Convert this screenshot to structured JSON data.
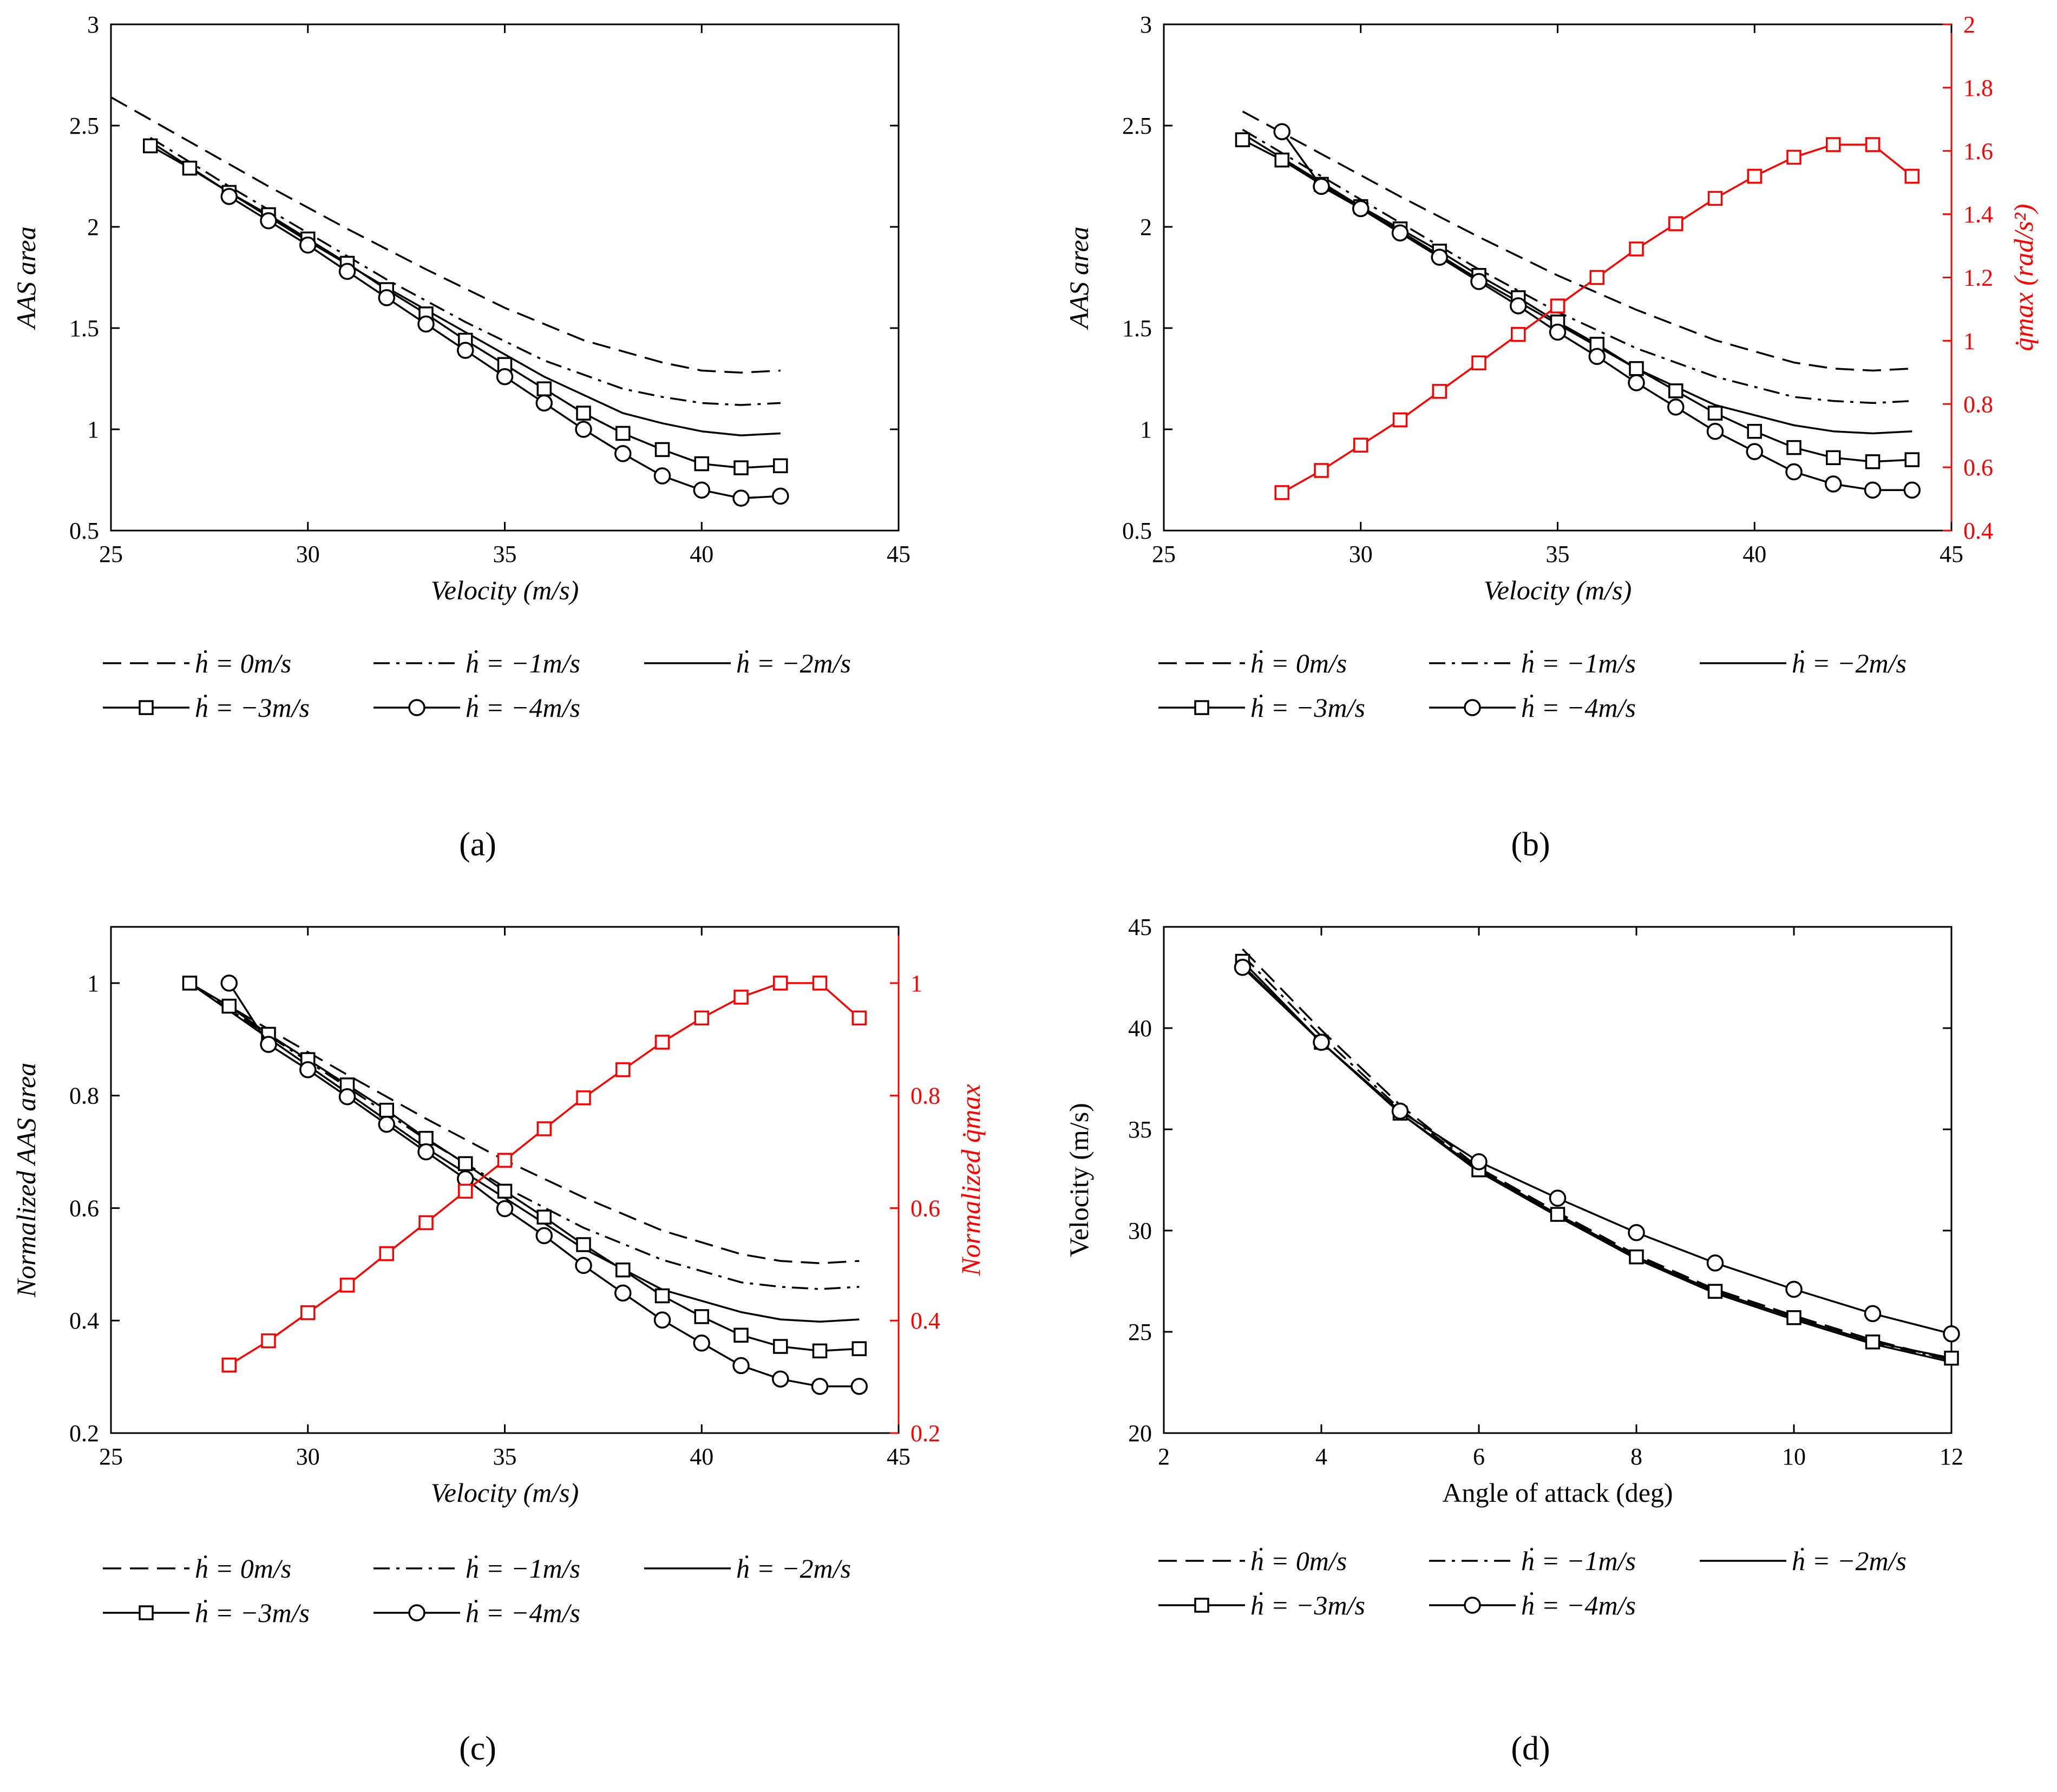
{
  "chart_data": [
    {
      "id": "a",
      "type": "line",
      "caption": "(a)",
      "xlabel": "Velocity (m/s)",
      "ylabel": "AAS area",
      "xlim": [
        25,
        45
      ],
      "ylim": [
        0.5,
        3
      ],
      "xticks": [
        "25",
        "30",
        "35",
        "40",
        "45"
      ],
      "yticks": [
        "0.5",
        "1",
        "1.5",
        "2",
        "2.5",
        "3"
      ],
      "legend": [
        "ḣ = 0m/s",
        "ḣ = −1m/s",
        "ḣ = −2m/s",
        "ḣ = −3m/s",
        "ḣ = −4m/s"
      ],
      "series": [
        {
          "name": "ḣ = 0m/s",
          "style": "dashed",
          "x": [
            25,
            27,
            29,
            31,
            33,
            35,
            37,
            39,
            40,
            41,
            42
          ],
          "y": [
            2.64,
            2.42,
            2.2,
            1.99,
            1.79,
            1.6,
            1.44,
            1.33,
            1.29,
            1.28,
            1.29
          ]
        },
        {
          "name": "ḣ = −1m/s",
          "style": "dashdot",
          "x": [
            26,
            28,
            30,
            32,
            34,
            36,
            38,
            39,
            40,
            41,
            42
          ],
          "y": [
            2.44,
            2.2,
            1.97,
            1.74,
            1.53,
            1.34,
            1.2,
            1.16,
            1.13,
            1.12,
            1.13
          ]
        },
        {
          "name": "ḣ = −2m/s",
          "style": "solid",
          "x": [
            26,
            28,
            30,
            32,
            34,
            36,
            38,
            39,
            40,
            41,
            42
          ],
          "y": [
            2.42,
            2.17,
            1.93,
            1.7,
            1.48,
            1.26,
            1.08,
            1.03,
            0.99,
            0.97,
            0.98
          ]
        },
        {
          "name": "ḣ = −3m/s",
          "style": "square",
          "x": [
            26,
            27,
            28,
            29,
            30,
            31,
            32,
            33,
            34,
            35,
            36,
            37,
            38,
            39,
            40,
            41,
            42
          ],
          "y": [
            2.4,
            2.29,
            2.17,
            2.06,
            1.94,
            1.82,
            1.69,
            1.57,
            1.44,
            1.32,
            1.2,
            1.08,
            0.98,
            0.9,
            0.83,
            0.81,
            0.82
          ]
        },
        {
          "name": "ḣ = −4m/s",
          "style": "circle",
          "x": [
            28,
            29,
            30,
            31,
            32,
            33,
            34,
            35,
            36,
            37,
            38,
            39,
            40,
            41,
            42
          ],
          "y": [
            2.15,
            2.03,
            1.91,
            1.78,
            1.65,
            1.52,
            1.39,
            1.26,
            1.13,
            1.0,
            0.88,
            0.77,
            0.7,
            0.66,
            0.67
          ]
        }
      ]
    },
    {
      "id": "b",
      "type": "line",
      "caption": "(b)",
      "xlabel": "Velocity (m/s)",
      "ylabel": "AAS area",
      "ylabel_right": "q̇max (rad/s²)",
      "xlim": [
        25,
        45
      ],
      "ylim": [
        0.5,
        3
      ],
      "ylim_right": [
        0.4,
        2
      ],
      "xticks": [
        "25",
        "30",
        "35",
        "40",
        "45"
      ],
      "yticks": [
        "0.5",
        "1",
        "1.5",
        "2",
        "2.5",
        "3"
      ],
      "yticks_right": [
        "0.4",
        "0.6",
        "0.8",
        "1",
        "1.2",
        "1.4",
        "1.6",
        "1.8",
        "2"
      ],
      "legend": [
        "ḣ = 0m/s",
        "ḣ = −1m/s",
        "ḣ = −2m/s",
        "ḣ = −3m/s",
        "ḣ = −4m/s"
      ],
      "series": [
        {
          "name": "ḣ = 0m/s",
          "style": "dashed",
          "x": [
            27,
            29,
            31,
            33,
            35,
            37,
            39,
            41,
            42,
            43,
            44
          ],
          "y": [
            2.57,
            2.36,
            2.15,
            1.95,
            1.76,
            1.59,
            1.44,
            1.33,
            1.3,
            1.29,
            1.3
          ]
        },
        {
          "name": "ḣ = −1m/s",
          "style": "dashdot",
          "x": [
            27,
            29,
            31,
            33,
            35,
            37,
            39,
            41,
            42,
            43,
            44
          ],
          "y": [
            2.48,
            2.25,
            2.02,
            1.79,
            1.58,
            1.4,
            1.26,
            1.16,
            1.14,
            1.13,
            1.14
          ]
        },
        {
          "name": "ḣ = −2m/s",
          "style": "solid",
          "x": [
            27,
            29,
            31,
            33,
            35,
            37,
            39,
            41,
            42,
            43,
            44
          ],
          "y": [
            2.46,
            2.22,
            1.98,
            1.74,
            1.52,
            1.3,
            1.12,
            1.02,
            0.99,
            0.98,
            0.99
          ]
        },
        {
          "name": "ḣ = −3m/s",
          "style": "square",
          "x": [
            27,
            28,
            29,
            30,
            31,
            32,
            33,
            34,
            35,
            36,
            37,
            38,
            39,
            40,
            41,
            42,
            43,
            44
          ],
          "y": [
            2.43,
            2.33,
            2.21,
            2.1,
            1.99,
            1.88,
            1.76,
            1.65,
            1.53,
            1.42,
            1.3,
            1.19,
            1.08,
            0.99,
            0.91,
            0.86,
            0.84,
            0.85
          ]
        },
        {
          "name": "ḣ = −4m/s",
          "style": "circle",
          "x": [
            28,
            29,
            30,
            31,
            32,
            33,
            34,
            35,
            36,
            37,
            38,
            39,
            40,
            41,
            42,
            43,
            44
          ],
          "y": [
            2.47,
            2.2,
            2.09,
            1.97,
            1.85,
            1.73,
            1.61,
            1.48,
            1.36,
            1.23,
            1.11,
            0.99,
            0.89,
            0.79,
            0.73,
            0.7,
            0.7
          ]
        },
        {
          "name": "q̇max",
          "style": "red-square",
          "axis": "right",
          "x": [
            28,
            29,
            30,
            31,
            32,
            33,
            34,
            35,
            36,
            37,
            38,
            39,
            40,
            41,
            42,
            43,
            44
          ],
          "y": [
            0.52,
            0.59,
            0.67,
            0.75,
            0.84,
            0.93,
            1.02,
            1.11,
            1.2,
            1.29,
            1.37,
            1.45,
            1.52,
            1.58,
            1.62,
            1.62,
            1.52
          ]
        }
      ]
    },
    {
      "id": "c",
      "type": "line",
      "caption": "(c)",
      "xlabel": "Velocity (m/s)",
      "ylabel": "Normalized AAS area",
      "ylabel_right": "Normalized q̇max",
      "xlim": [
        25,
        45
      ],
      "ylim": [
        0.2,
        1.1
      ],
      "ylim_right": [
        0.2,
        1.1
      ],
      "xticks": [
        "25",
        "30",
        "35",
        "40",
        "45"
      ],
      "yticks": [
        "0.2",
        "0.4",
        "0.6",
        "0.8",
        "1"
      ],
      "yticks_right": [
        "0.2",
        "0.4",
        "0.6",
        "0.8",
        "1"
      ],
      "legend": [
        "ḣ = 0m/s",
        "ḣ = −1m/s",
        "ḣ = −2m/s",
        "ḣ = −3m/s",
        "ḣ = −4m/s"
      ],
      "series": [
        {
          "name": "ḣ = 0m/s",
          "style": "dashed",
          "x": [
            27,
            29,
            31,
            33,
            35,
            37,
            39,
            41,
            42,
            43,
            44
          ],
          "y": [
            1.0,
            0.918,
            0.837,
            0.759,
            0.685,
            0.619,
            0.56,
            0.518,
            0.506,
            0.502,
            0.506
          ]
        },
        {
          "name": "ḣ = −1m/s",
          "style": "dashdot",
          "x": [
            27,
            29,
            31,
            33,
            35,
            37,
            39,
            41,
            42,
            43,
            44
          ],
          "y": [
            1.0,
            0.907,
            0.815,
            0.722,
            0.637,
            0.565,
            0.508,
            0.468,
            0.46,
            0.456,
            0.46
          ]
        },
        {
          "name": "ḣ = −2m/s",
          "style": "solid",
          "x": [
            27,
            29,
            31,
            33,
            35,
            37,
            39,
            41,
            42,
            43,
            44
          ],
          "y": [
            1.0,
            0.902,
            0.805,
            0.707,
            0.618,
            0.528,
            0.455,
            0.415,
            0.402,
            0.398,
            0.402
          ]
        },
        {
          "name": "ḣ = −3m/s",
          "style": "square",
          "x": [
            27,
            28,
            29,
            30,
            31,
            32,
            33,
            34,
            35,
            36,
            37,
            38,
            39,
            40,
            41,
            42,
            43,
            44
          ],
          "y": [
            1.0,
            0.959,
            0.909,
            0.864,
            0.819,
            0.774,
            0.724,
            0.679,
            0.63,
            0.584,
            0.535,
            0.49,
            0.444,
            0.407,
            0.374,
            0.354,
            0.346,
            0.35
          ]
        },
        {
          "name": "ḣ = −4m/s",
          "style": "circle",
          "x": [
            28,
            29,
            30,
            31,
            32,
            33,
            34,
            35,
            36,
            37,
            38,
            39,
            40,
            41,
            42,
            43,
            44
          ],
          "y": [
            1.0,
            0.891,
            0.846,
            0.798,
            0.749,
            0.7,
            0.652,
            0.599,
            0.551,
            0.498,
            0.449,
            0.401,
            0.36,
            0.32,
            0.296,
            0.283,
            0.283
          ]
        },
        {
          "name": "Normalized q̇max",
          "style": "red-square",
          "axis": "right",
          "x": [
            28,
            29,
            30,
            31,
            32,
            33,
            34,
            35,
            36,
            37,
            38,
            39,
            40,
            41,
            42,
            43,
            44
          ],
          "y": [
            0.321,
            0.364,
            0.414,
            0.463,
            0.519,
            0.574,
            0.63,
            0.685,
            0.741,
            0.796,
            0.846,
            0.895,
            0.938,
            0.975,
            1.0,
            1.0,
            0.938
          ]
        }
      ]
    },
    {
      "id": "d",
      "type": "line",
      "caption": "(d)",
      "xlabel": "Angle of attack (deg)",
      "ylabel": "Velocity (m/s)",
      "xlim": [
        2,
        12
      ],
      "ylim": [
        20,
        45
      ],
      "xticks": [
        "2",
        "4",
        "6",
        "8",
        "10",
        "12"
      ],
      "yticks": [
        "20",
        "25",
        "30",
        "35",
        "40",
        "45"
      ],
      "legend": [
        "ḣ = 0m/s",
        "ḣ = −1m/s",
        "ḣ = −2m/s",
        "ḣ = −3m/s",
        "ḣ = −4m/s"
      ],
      "series": [
        {
          "name": "ḣ = 0m/s",
          "style": "dashed",
          "x": [
            3,
            4,
            5,
            6,
            7,
            8,
            9,
            10,
            11,
            12
          ],
          "y": [
            43.9,
            39.9,
            36.2,
            33.1,
            30.9,
            28.8,
            27.1,
            25.8,
            24.6,
            23.6
          ]
        },
        {
          "name": "ḣ = −1m/s",
          "style": "dashdot",
          "x": [
            3,
            4,
            5,
            6,
            7,
            8,
            9,
            10,
            11,
            12
          ],
          "y": [
            43.6,
            39.6,
            36.0,
            33.0,
            30.8,
            28.7,
            27.0,
            25.7,
            24.5,
            23.6
          ]
        },
        {
          "name": "ḣ = −2m/s",
          "style": "solid",
          "x": [
            3,
            4,
            5,
            6,
            7,
            8,
            9,
            10,
            11,
            12
          ],
          "y": [
            43.1,
            39.3,
            35.8,
            32.9,
            30.7,
            28.6,
            26.9,
            25.6,
            24.4,
            23.5
          ]
        },
        {
          "name": "ḣ = −3m/s",
          "style": "square",
          "x": [
            3,
            4,
            5,
            6,
            7,
            8,
            9,
            10,
            11,
            12
          ],
          "y": [
            43.3,
            39.3,
            35.8,
            33.0,
            30.8,
            28.7,
            27.0,
            25.7,
            24.5,
            23.7
          ]
        },
        {
          "name": "ḣ = −4m/s",
          "style": "circle",
          "x": [
            3,
            4,
            5,
            6,
            7,
            8,
            9,
            10,
            11,
            12
          ],
          "y": [
            43.0,
            39.3,
            35.9,
            33.4,
            31.6,
            29.9,
            28.4,
            27.1,
            25.9,
            24.9
          ]
        }
      ]
    }
  ]
}
